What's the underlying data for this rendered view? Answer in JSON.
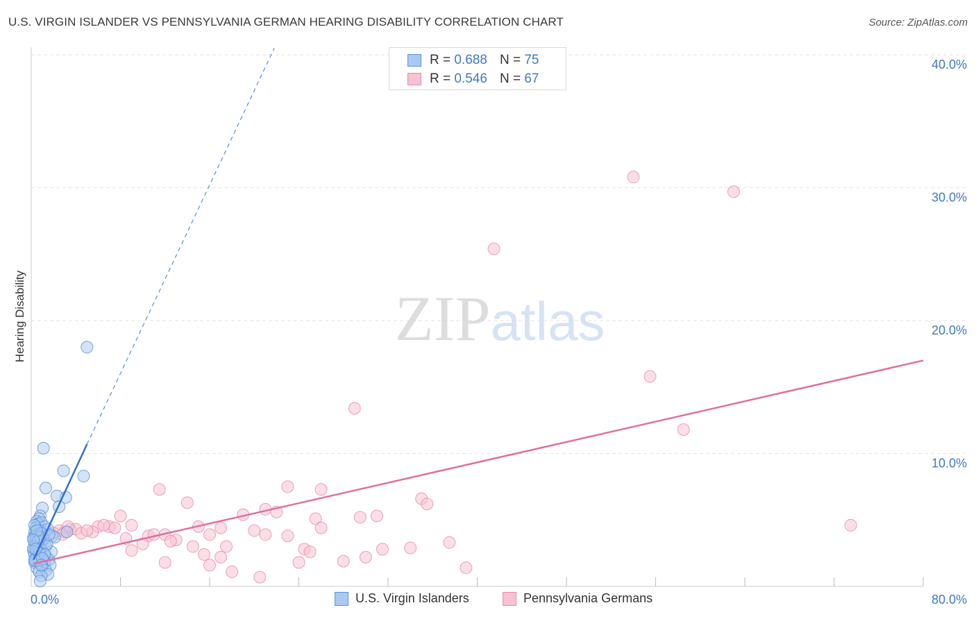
{
  "chart_data": {
    "type": "scatter",
    "title": "U.S. VIRGIN ISLANDER VS PENNSYLVANIA GERMAN HEARING DISABILITY CORRELATION CHART",
    "source": "Source: ZipAtlas.com",
    "xlabel": "",
    "ylabel": "Hearing Disability",
    "xlim": [
      0,
      80
    ],
    "ylim": [
      0,
      40
    ],
    "x_tick_labels": [
      "0.0%",
      "80.0%"
    ],
    "y_tick_labels": [
      "10.0%",
      "20.0%",
      "30.0%",
      "40.0%"
    ],
    "y_ticks": [
      10,
      20,
      30,
      40
    ],
    "grid": true,
    "watermark": "ZIPatlas",
    "legend": {
      "series1": {
        "r_label": "R =",
        "r_value": "0.688",
        "n_label": "N =",
        "n_value": "75"
      },
      "series2": {
        "r_label": "R =",
        "r_value": "0.546",
        "n_label": "N =",
        "n_value": "67"
      }
    },
    "colors": {
      "blue_fill": "#aac8f2",
      "blue_stroke": "#5c93d8",
      "blue_line": "#2f6fd0",
      "pink_fill": "#f7c2d2",
      "pink_stroke": "#e88aa8",
      "pink_line": "#e0709a",
      "grid": "#e3e3e3",
      "tick_label": "#3f78c8"
    },
    "series": [
      {
        "name": "U.S. Virgin Islanders",
        "trend": {
          "x": [
            0.2,
            5.0
          ],
          "y": [
            2.0,
            10.7
          ],
          "extend_to": [
            21.8,
            40.5
          ]
        },
        "points": [
          [
            5.0,
            18.0
          ],
          [
            1.1,
            10.4
          ],
          [
            2.9,
            8.7
          ],
          [
            4.7,
            8.3
          ],
          [
            1.3,
            7.4
          ],
          [
            3.1,
            6.7
          ],
          [
            2.3,
            6.8
          ],
          [
            2.5,
            6.0
          ],
          [
            1.0,
            5.9
          ],
          [
            0.8,
            5.3
          ],
          [
            0.7,
            5.1
          ],
          [
            0.5,
            4.9
          ],
          [
            0.6,
            4.7
          ],
          [
            0.9,
            4.8
          ],
          [
            1.2,
            4.5
          ],
          [
            0.4,
            4.4
          ],
          [
            0.3,
            4.1
          ],
          [
            0.8,
            4.2
          ],
          [
            1.5,
            4.3
          ],
          [
            3.2,
            4.1
          ],
          [
            0.6,
            3.9
          ],
          [
            1.9,
            3.8
          ],
          [
            2.1,
            3.7
          ],
          [
            0.2,
            3.7
          ],
          [
            0.5,
            3.6
          ],
          [
            0.7,
            3.5
          ],
          [
            1.0,
            3.4
          ],
          [
            0.3,
            3.3
          ],
          [
            0.8,
            3.2
          ],
          [
            0.4,
            3.1
          ],
          [
            1.3,
            3.0
          ],
          [
            0.6,
            2.9
          ],
          [
            0.9,
            2.8
          ],
          [
            0.2,
            2.7
          ],
          [
            0.5,
            2.6
          ],
          [
            1.1,
            2.5
          ],
          [
            0.3,
            2.4
          ],
          [
            0.7,
            2.3
          ],
          [
            1.4,
            2.2
          ],
          [
            0.4,
            2.1
          ],
          [
            0.9,
            2.0
          ],
          [
            1.6,
            2.0
          ],
          [
            0.6,
            1.9
          ],
          [
            1.2,
            1.8
          ],
          [
            0.3,
            1.8
          ],
          [
            0.8,
            1.7
          ],
          [
            1.7,
            1.6
          ],
          [
            1.0,
            1.5
          ],
          [
            0.5,
            1.4
          ],
          [
            1.3,
            1.2
          ],
          [
            0.7,
            1.1
          ],
          [
            1.5,
            0.9
          ],
          [
            0.9,
            0.8
          ],
          [
            0.8,
            0.4
          ],
          [
            0.4,
            3.8
          ],
          [
            0.6,
            3.0
          ],
          [
            0.2,
            2.9
          ],
          [
            1.8,
            2.6
          ],
          [
            0.5,
            2.2
          ],
          [
            1.1,
            3.6
          ],
          [
            0.3,
            4.6
          ],
          [
            0.9,
            4.0
          ],
          [
            1.4,
            3.2
          ],
          [
            0.7,
            2.5
          ],
          [
            0.4,
            1.9
          ],
          [
            1.2,
            2.4
          ],
          [
            0.6,
            3.4
          ],
          [
            0.3,
            2.0
          ],
          [
            1.0,
            2.1
          ],
          [
            0.8,
            3.7
          ],
          [
            0.5,
            4.2
          ],
          [
            1.6,
            3.9
          ],
          [
            0.2,
            3.5
          ],
          [
            0.9,
            1.6
          ],
          [
            0.4,
            2.8
          ]
        ]
      },
      {
        "name": "Pennsylvania Germans",
        "trend": {
          "x": [
            0.2,
            80.0
          ],
          "y": [
            1.7,
            17.0
          ]
        },
        "points": [
          [
            54.0,
            30.8
          ],
          [
            63.0,
            29.7
          ],
          [
            41.5,
            25.4
          ],
          [
            29.0,
            13.4
          ],
          [
            55.5,
            15.8
          ],
          [
            58.5,
            11.8
          ],
          [
            73.5,
            4.6
          ],
          [
            11.5,
            7.3
          ],
          [
            23.0,
            7.5
          ],
          [
            26.0,
            7.3
          ],
          [
            35.0,
            6.6
          ],
          [
            35.5,
            6.2
          ],
          [
            14.0,
            6.3
          ],
          [
            21.0,
            5.8
          ],
          [
            22.0,
            5.6
          ],
          [
            19.0,
            5.4
          ],
          [
            25.5,
            5.1
          ],
          [
            29.5,
            5.2
          ],
          [
            31.0,
            5.3
          ],
          [
            8.0,
            5.3
          ],
          [
            9.0,
            4.6
          ],
          [
            6.0,
            4.5
          ],
          [
            7.0,
            4.5
          ],
          [
            7.5,
            4.4
          ],
          [
            3.5,
            4.3
          ],
          [
            4.0,
            4.3
          ],
          [
            2.5,
            4.2
          ],
          [
            3.0,
            4.1
          ],
          [
            5.5,
            4.1
          ],
          [
            4.5,
            4.0
          ],
          [
            2.0,
            4.0
          ],
          [
            15.0,
            4.5
          ],
          [
            17.0,
            4.4
          ],
          [
            20.0,
            4.2
          ],
          [
            16.0,
            3.9
          ],
          [
            21.0,
            3.9
          ],
          [
            23.0,
            3.8
          ],
          [
            26.0,
            4.4
          ],
          [
            10.5,
            3.8
          ],
          [
            11.0,
            3.9
          ],
          [
            12.0,
            3.9
          ],
          [
            13.0,
            3.5
          ],
          [
            8.5,
            3.6
          ],
          [
            12.5,
            3.4
          ],
          [
            10.0,
            3.2
          ],
          [
            14.5,
            3.0
          ],
          [
            17.5,
            3.0
          ],
          [
            9.0,
            2.7
          ],
          [
            24.5,
            2.8
          ],
          [
            25.0,
            2.6
          ],
          [
            34.0,
            2.9
          ],
          [
            37.5,
            3.3
          ],
          [
            31.5,
            2.8
          ],
          [
            15.5,
            2.4
          ],
          [
            17.0,
            2.2
          ],
          [
            30.0,
            2.2
          ],
          [
            28.0,
            1.9
          ],
          [
            12.0,
            1.8
          ],
          [
            16.0,
            1.6
          ],
          [
            24.0,
            1.8
          ],
          [
            18.0,
            1.1
          ],
          [
            20.5,
            0.7
          ],
          [
            39.0,
            1.4
          ],
          [
            6.5,
            4.6
          ],
          [
            3.3,
            4.5
          ],
          [
            2.8,
            3.9
          ],
          [
            5.0,
            4.2
          ]
        ]
      }
    ]
  }
}
